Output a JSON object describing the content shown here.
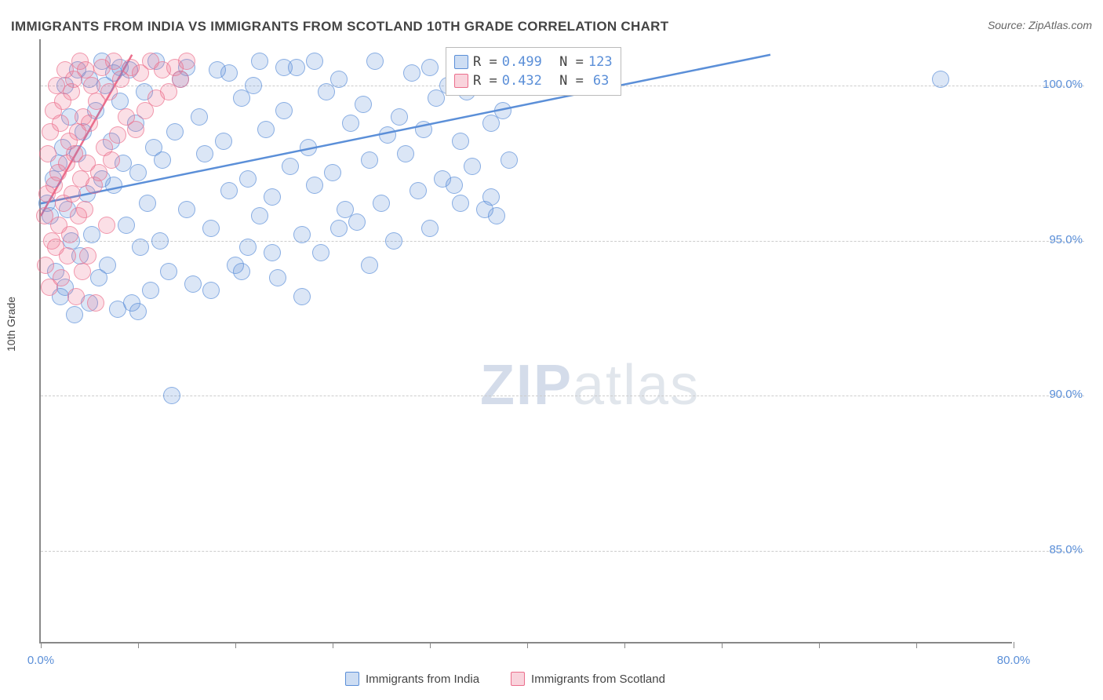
{
  "title": "IMMIGRANTS FROM INDIA VS IMMIGRANTS FROM SCOTLAND 10TH GRADE CORRELATION CHART",
  "source": "Source: ZipAtlas.com",
  "ylabel": "10th Grade",
  "watermark_bold": "ZIP",
  "watermark_light": "atlas",
  "chart": {
    "type": "scatter",
    "xlim": [
      0,
      80
    ],
    "ylim": [
      82,
      101.5
    ],
    "x_ticks": [
      0,
      8,
      16,
      24,
      32,
      40,
      48,
      56,
      64,
      72,
      80
    ],
    "x_tick_labels": {
      "0": "0.0%",
      "80": "80.0%"
    },
    "y_gridlines": [
      85,
      90,
      95,
      100
    ],
    "y_tick_labels": {
      "85": "85.0%",
      "90": "90.0%",
      "95": "95.0%",
      "100": "100.0%"
    },
    "grid_color": "#cccccc",
    "axis_color": "#888888",
    "background_color": "#ffffff",
    "point_radius": 11,
    "series": [
      {
        "name": "Immigrants from India",
        "color": "#5b8fd8",
        "fill_opacity": 0.22,
        "stroke_opacity": 0.65,
        "R": "0.499",
        "N": "123",
        "trend": {
          "x1": 0,
          "y1": 96.2,
          "x2": 60,
          "y2": 101.0,
          "width": 2.5
        },
        "points": [
          [
            0.5,
            96.2
          ],
          [
            0.8,
            95.8
          ],
          [
            1.0,
            97.0
          ],
          [
            1.2,
            94.0
          ],
          [
            1.5,
            97.5
          ],
          [
            1.6,
            93.2
          ],
          [
            1.8,
            98.0
          ],
          [
            2.0,
            93.5
          ],
          [
            2.2,
            96.0
          ],
          [
            2.4,
            99.0
          ],
          [
            2.5,
            95.0
          ],
          [
            2.8,
            92.6
          ],
          [
            3.0,
            97.8
          ],
          [
            3.2,
            94.5
          ],
          [
            3.5,
            98.5
          ],
          [
            3.8,
            96.5
          ],
          [
            4.0,
            100.2
          ],
          [
            4.2,
            95.2
          ],
          [
            4.5,
            99.2
          ],
          [
            4.8,
            93.8
          ],
          [
            5.0,
            97.0
          ],
          [
            5.3,
            100.0
          ],
          [
            5.5,
            94.2
          ],
          [
            5.8,
            98.2
          ],
          [
            6.0,
            96.8
          ],
          [
            6.3,
            92.8
          ],
          [
            6.5,
            99.5
          ],
          [
            6.8,
            97.5
          ],
          [
            7.0,
            95.5
          ],
          [
            7.3,
            100.5
          ],
          [
            7.5,
            93.0
          ],
          [
            7.8,
            98.8
          ],
          [
            8.0,
            97.2
          ],
          [
            8.2,
            94.8
          ],
          [
            8.5,
            99.8
          ],
          [
            8.8,
            96.2
          ],
          [
            9.0,
            93.4
          ],
          [
            9.3,
            98.0
          ],
          [
            9.5,
            100.8
          ],
          [
            9.8,
            95.0
          ],
          [
            10.0,
            97.6
          ],
          [
            10.5,
            94.0
          ],
          [
            11.0,
            98.5
          ],
          [
            11.5,
            100.2
          ],
          [
            12.0,
            96.0
          ],
          [
            12.5,
            93.6
          ],
          [
            13.0,
            99.0
          ],
          [
            13.5,
            97.8
          ],
          [
            14.0,
            95.4
          ],
          [
            14.5,
            100.5
          ],
          [
            15.0,
            98.2
          ],
          [
            15.5,
            96.6
          ],
          [
            16.0,
            94.2
          ],
          [
            16.5,
            99.6
          ],
          [
            17.0,
            97.0
          ],
          [
            17.5,
            100.0
          ],
          [
            18.0,
            95.8
          ],
          [
            18.5,
            98.6
          ],
          [
            19.0,
            96.4
          ],
          [
            19.5,
            93.8
          ],
          [
            20.0,
            99.2
          ],
          [
            20.5,
            97.4
          ],
          [
            21.0,
            100.6
          ],
          [
            21.5,
            95.2
          ],
          [
            22.0,
            98.0
          ],
          [
            22.5,
            96.8
          ],
          [
            23.0,
            94.6
          ],
          [
            23.5,
            99.8
          ],
          [
            24.0,
            97.2
          ],
          [
            24.5,
            100.2
          ],
          [
            25.0,
            96.0
          ],
          [
            25.5,
            98.8
          ],
          [
            26.0,
            95.6
          ],
          [
            26.5,
            99.4
          ],
          [
            27.0,
            97.6
          ],
          [
            27.5,
            100.8
          ],
          [
            28.0,
            96.2
          ],
          [
            28.5,
            98.4
          ],
          [
            29.0,
            95.0
          ],
          [
            29.5,
            99.0
          ],
          [
            30.0,
            97.8
          ],
          [
            30.5,
            100.4
          ],
          [
            31.0,
            96.6
          ],
          [
            31.5,
            98.6
          ],
          [
            32.0,
            95.4
          ],
          [
            32.5,
            99.6
          ],
          [
            33.0,
            97.0
          ],
          [
            33.5,
            100.0
          ],
          [
            34.0,
            96.8
          ],
          [
            34.5,
            98.2
          ],
          [
            35.0,
            99.8
          ],
          [
            35.5,
            97.4
          ],
          [
            36.0,
            100.6
          ],
          [
            36.5,
            96.0
          ],
          [
            37.0,
            98.8
          ],
          [
            37.5,
            95.8
          ],
          [
            38.0,
            99.2
          ],
          [
            38.5,
            97.6
          ],
          [
            39.0,
            100.2
          ],
          [
            8.0,
            92.7
          ],
          [
            5.0,
            100.8
          ],
          [
            3.0,
            100.5
          ],
          [
            6.5,
            100.6
          ],
          [
            10.8,
            90.0
          ],
          [
            6.0,
            100.4
          ],
          [
            18.0,
            100.8
          ],
          [
            20.0,
            100.6
          ],
          [
            16.5,
            94.0
          ],
          [
            19.0,
            94.6
          ],
          [
            21.5,
            93.2
          ],
          [
            2.0,
            100.0
          ],
          [
            4.0,
            93.0
          ],
          [
            12.0,
            100.6
          ],
          [
            14.0,
            93.4
          ],
          [
            15.5,
            100.4
          ],
          [
            17.0,
            94.8
          ],
          [
            22.5,
            100.8
          ],
          [
            24.5,
            95.4
          ],
          [
            27.0,
            94.2
          ],
          [
            32.0,
            100.6
          ],
          [
            34.5,
            96.2
          ],
          [
            37.0,
            96.4
          ],
          [
            74.0,
            100.2
          ]
        ]
      },
      {
        "name": "Immigrants from Scotland",
        "color": "#eb6e8c",
        "fill_opacity": 0.22,
        "stroke_opacity": 0.65,
        "R": "0.432",
        "N": "63",
        "trend": {
          "x1": 0,
          "y1": 95.8,
          "x2": 7.5,
          "y2": 101.0,
          "width": 2.5
        },
        "points": [
          [
            0.3,
            95.8
          ],
          [
            0.4,
            94.2
          ],
          [
            0.5,
            96.5
          ],
          [
            0.6,
            97.8
          ],
          [
            0.7,
            93.5
          ],
          [
            0.8,
            98.5
          ],
          [
            0.9,
            95.0
          ],
          [
            1.0,
            99.2
          ],
          [
            1.1,
            96.8
          ],
          [
            1.2,
            94.8
          ],
          [
            1.3,
            100.0
          ],
          [
            1.4,
            97.2
          ],
          [
            1.5,
            95.5
          ],
          [
            1.6,
            98.8
          ],
          [
            1.7,
            93.8
          ],
          [
            1.8,
            99.5
          ],
          [
            1.9,
            96.2
          ],
          [
            2.0,
            100.5
          ],
          [
            2.1,
            97.5
          ],
          [
            2.2,
            94.5
          ],
          [
            2.3,
            98.2
          ],
          [
            2.4,
            95.2
          ],
          [
            2.5,
            99.8
          ],
          [
            2.6,
            96.5
          ],
          [
            2.7,
            100.2
          ],
          [
            2.8,
            97.8
          ],
          [
            2.9,
            93.2
          ],
          [
            3.0,
            98.5
          ],
          [
            3.1,
            95.8
          ],
          [
            3.2,
            100.8
          ],
          [
            3.3,
            97.0
          ],
          [
            3.4,
            94.0
          ],
          [
            3.5,
            99.0
          ],
          [
            3.6,
            96.0
          ],
          [
            3.7,
            100.5
          ],
          [
            3.8,
            97.5
          ],
          [
            3.9,
            94.5
          ],
          [
            4.0,
            98.8
          ],
          [
            4.2,
            100.0
          ],
          [
            4.4,
            96.8
          ],
          [
            4.6,
            99.5
          ],
          [
            4.8,
            97.2
          ],
          [
            5.0,
            100.6
          ],
          [
            5.2,
            98.0
          ],
          [
            5.4,
            95.5
          ],
          [
            5.6,
            99.8
          ],
          [
            5.8,
            97.6
          ],
          [
            6.0,
            100.8
          ],
          [
            6.3,
            98.4
          ],
          [
            6.6,
            100.2
          ],
          [
            7.0,
            99.0
          ],
          [
            7.4,
            100.6
          ],
          [
            7.8,
            98.6
          ],
          [
            8.2,
            100.4
          ],
          [
            8.6,
            99.2
          ],
          [
            9.0,
            100.8
          ],
          [
            9.5,
            99.6
          ],
          [
            10.0,
            100.5
          ],
          [
            10.5,
            99.8
          ],
          [
            11.0,
            100.6
          ],
          [
            11.5,
            100.2
          ],
          [
            12.0,
            100.8
          ],
          [
            4.5,
            93.0
          ]
        ]
      }
    ]
  },
  "legend": {
    "items": [
      {
        "label": "Immigrants from India",
        "swatch": "a"
      },
      {
        "label": "Immigrants from Scotland",
        "swatch": "b"
      }
    ]
  },
  "stats_labels": {
    "R": "R =",
    "N": "N ="
  }
}
